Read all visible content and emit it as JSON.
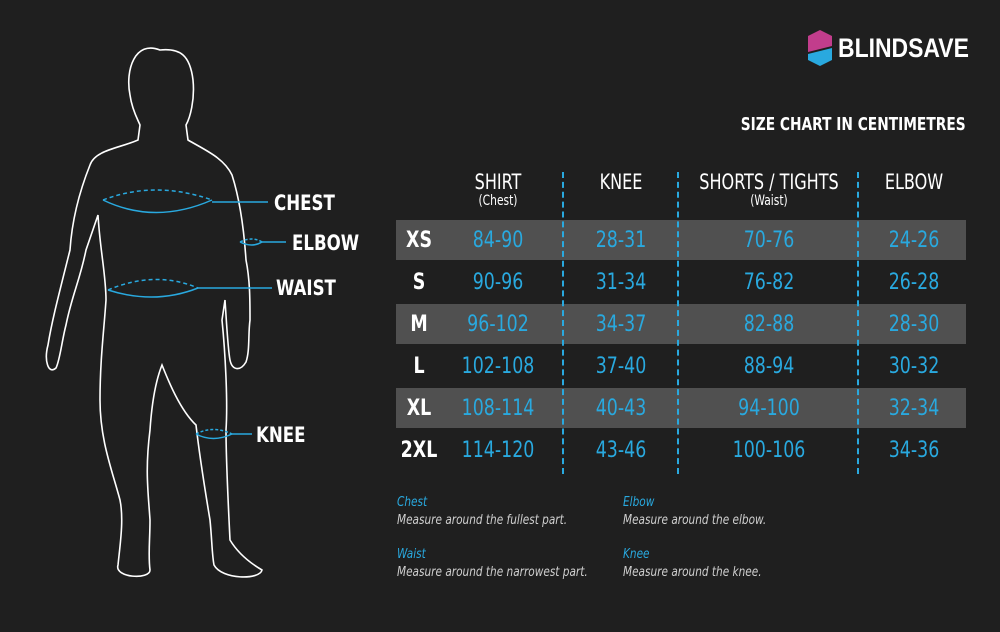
{
  "brand": {
    "name": "BLINDSAVE",
    "colors": {
      "magenta": "#c23d8c",
      "cyan": "#29a9df"
    }
  },
  "title": "SIZE CHART IN CENTIMETRES",
  "columns": [
    {
      "label": "SHIRT",
      "sub": "(Chest)"
    },
    {
      "label": "KNEE",
      "sub": ""
    },
    {
      "label": "SHORTS / TIGHTS",
      "sub": "(Waist)"
    },
    {
      "label": "ELBOW",
      "sub": ""
    }
  ],
  "rows": [
    {
      "size": "XS",
      "values": [
        "84-90",
        "28-31",
        "70-76",
        "24-26"
      ]
    },
    {
      "size": "S",
      "values": [
        "90-96",
        "31-34",
        "76-82",
        "26-28"
      ]
    },
    {
      "size": "M",
      "values": [
        "96-102",
        "34-37",
        "82-88",
        "28-30"
      ]
    },
    {
      "size": "L",
      "values": [
        "102-108",
        "37-40",
        "88-94",
        "30-32"
      ]
    },
    {
      "size": "XL",
      "values": [
        "108-114",
        "40-43",
        "94-100",
        "32-34"
      ]
    },
    {
      "size": "2XL",
      "values": [
        "114-120",
        "43-46",
        "100-106",
        "34-36"
      ]
    }
  ],
  "figure_labels": {
    "chest": "CHEST",
    "elbow": "ELBOW",
    "waist": "WAIST",
    "knee": "KNEE"
  },
  "notes": [
    {
      "title": "Chest",
      "desc": "Measure around the fullest part."
    },
    {
      "title": "Elbow",
      "desc": "Measure around the elbow."
    },
    {
      "title": "Waist",
      "desc": "Measure around the narrowest part."
    },
    {
      "title": "Knee",
      "desc": "Measure around the knee."
    }
  ],
  "colors": {
    "background": "#1f1f1f",
    "stripe": "#505050",
    "accent": "#29a9df"
  }
}
